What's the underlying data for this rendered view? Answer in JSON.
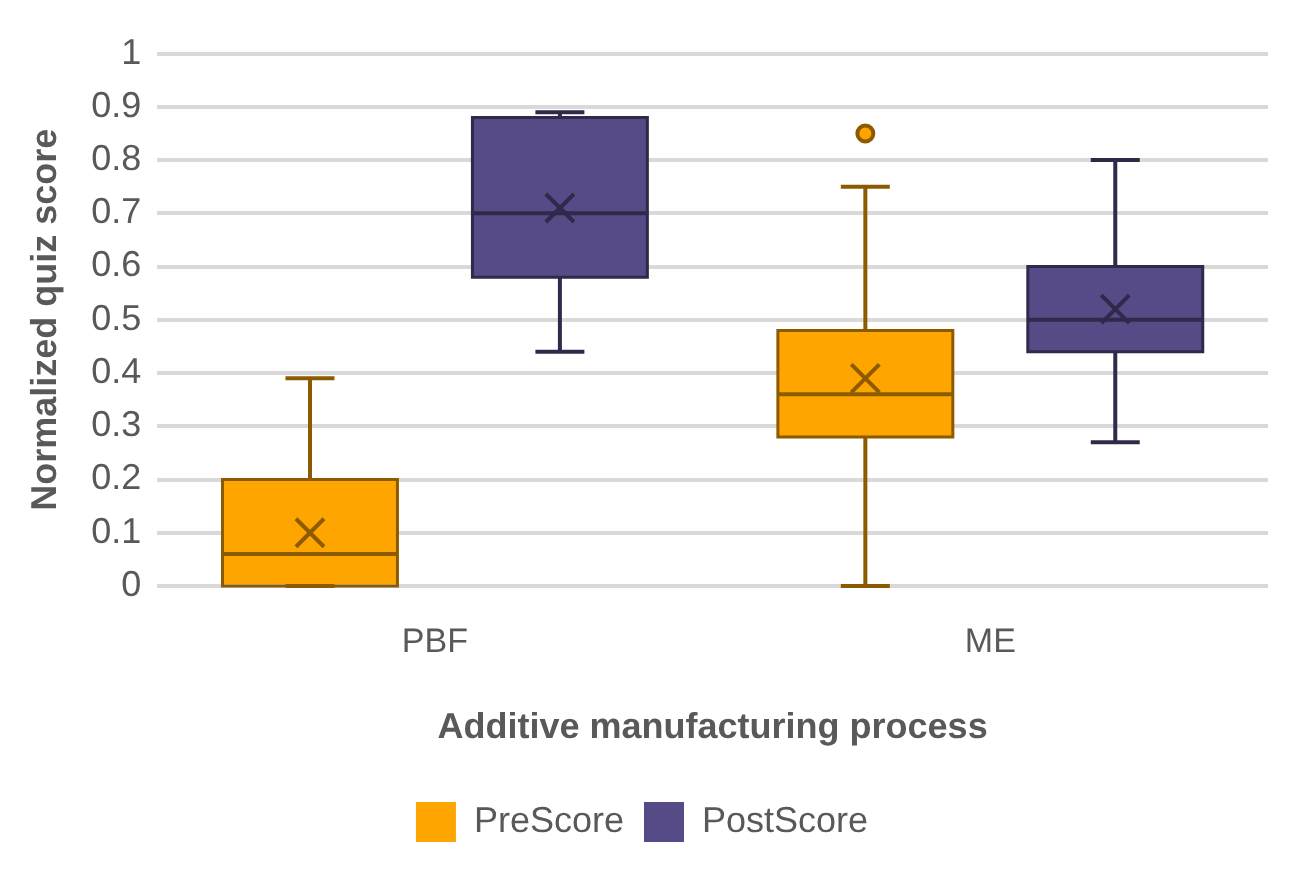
{
  "chart_data": {
    "type": "box",
    "xlabel": "Additive manufacturing process",
    "ylabel": "Normalized quiz score",
    "categories": [
      "PBF",
      "ME"
    ],
    "ylim": [
      0,
      1
    ],
    "yticks": [
      0,
      0.1,
      0.2,
      0.3,
      0.4,
      0.5,
      0.6,
      0.7,
      0.8,
      0.9,
      1
    ],
    "grid": "y",
    "legend": "bottom",
    "series": [
      {
        "name": "PreScore",
        "color": "#ffa500",
        "boxes": [
          {
            "low": 0,
            "q1": 0,
            "median": 0.06,
            "q3": 0.2,
            "high": 0.39,
            "mean": 0.1
          },
          {
            "low": 0,
            "q1": 0.28,
            "median": 0.36,
            "q3": 0.48,
            "high": 0.75,
            "mean": 0.39,
            "outliers": [
              0.85
            ]
          }
        ]
      },
      {
        "name": "PostScore",
        "color": "#574b87",
        "boxes": [
          {
            "low": 0.44,
            "q1": 0.58,
            "median": 0.7,
            "q3": 0.88,
            "high": 0.89,
            "mean": 0.71
          },
          {
            "low": 0.27,
            "q1": 0.44,
            "median": 0.5,
            "q3": 0.6,
            "high": 0.8,
            "mean": 0.52
          }
        ]
      }
    ]
  }
}
